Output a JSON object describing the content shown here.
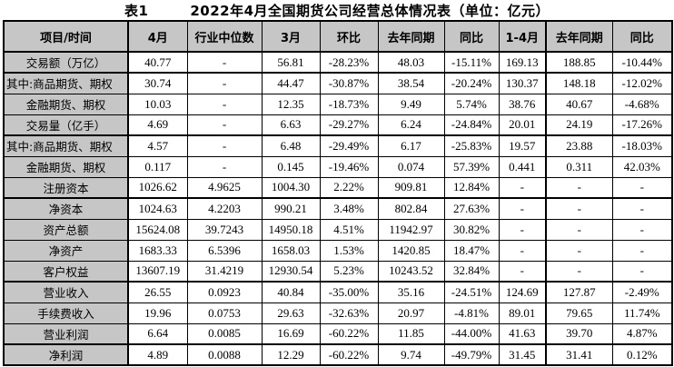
{
  "title": {
    "prefix": "表1",
    "text": "2022年4月全国期货公司经营总体情况表（单位：亿元）"
  },
  "colors": {
    "header_bg": "#c6c6c6",
    "border": "#000000",
    "text": "#000000"
  },
  "table": {
    "columns": [
      "项目/时间",
      "4月",
      "行业中位数",
      "3月",
      "环比",
      "去年同期",
      "同比",
      "1-4月",
      "去年同期",
      "同比"
    ],
    "rows": [
      {
        "label": "交易额（万亿）",
        "cells": [
          "40.77",
          "-",
          "56.81",
          "-28.23%",
          "48.03",
          "-15.11%",
          "169.13",
          "188.85",
          "-10.44%"
        ],
        "section_end": true
      },
      {
        "label": "其中:商品期货、期权",
        "cells": [
          "30.74",
          "-",
          "44.47",
          "-30.87%",
          "38.54",
          "-20.24%",
          "130.37",
          "148.18",
          "-12.02%"
        ],
        "section_end": false
      },
      {
        "label": "金融期货、期权",
        "cells": [
          "10.03",
          "-",
          "12.35",
          "-18.73%",
          "9.49",
          "5.74%",
          "38.76",
          "40.67",
          "-4.68%"
        ],
        "section_end": false
      },
      {
        "label": "交易量（亿手）",
        "cells": [
          "4.69",
          "-",
          "6.63",
          "-29.27%",
          "6.24",
          "-24.84%",
          "20.01",
          "24.19",
          "-17.26%"
        ],
        "section_end": true
      },
      {
        "label": "其中:商品期货、期权",
        "cells": [
          "4.57",
          "-",
          "6.48",
          "-29.49%",
          "6.17",
          "-25.83%",
          "19.57",
          "23.88",
          "-18.03%"
        ],
        "section_end": false
      },
      {
        "label": "金融期货、期权",
        "cells": [
          "0.117",
          "-",
          "0.145",
          "-19.46%",
          "0.074",
          "57.39%",
          "0.441",
          "0.311",
          "42.03%"
        ],
        "section_end": false
      },
      {
        "label": "注册资本",
        "cells": [
          "1026.62",
          "4.9625",
          "1004.30",
          "2.22%",
          "909.81",
          "12.84%",
          "-",
          "-",
          "-"
        ],
        "section_end": true
      },
      {
        "label": "净资本",
        "cells": [
          "1024.63",
          "4.2203",
          "990.21",
          "3.48%",
          "802.84",
          "27.63%",
          "-",
          "-",
          "-"
        ],
        "section_end": false
      },
      {
        "label": "资产总额",
        "cells": [
          "15624.08",
          "39.7243",
          "14950.18",
          "4.51%",
          "11942.97",
          "30.82%",
          "-",
          "-",
          "-"
        ],
        "section_end": false
      },
      {
        "label": "净资产",
        "cells": [
          "1683.33",
          "6.5396",
          "1658.03",
          "1.53%",
          "1420.85",
          "18.47%",
          "-",
          "-",
          "-"
        ],
        "section_end": false
      },
      {
        "label": "客户权益",
        "cells": [
          "13607.19",
          "31.4219",
          "12930.54",
          "5.23%",
          "10243.52",
          "32.84%",
          "-",
          "-",
          "-"
        ],
        "section_end": true
      },
      {
        "label": "营业收入",
        "cells": [
          "26.55",
          "0.0923",
          "40.84",
          "-35.00%",
          "35.16",
          "-24.51%",
          "124.69",
          "127.87",
          "-2.49%"
        ],
        "section_end": false
      },
      {
        "label": "手续费收入",
        "cells": [
          "19.96",
          "0.0753",
          "29.63",
          "-32.63%",
          "20.97",
          "-4.81%",
          "89.01",
          "79.65",
          "11.74%"
        ],
        "section_end": false
      },
      {
        "label": "营业利润",
        "cells": [
          "6.64",
          "0.0085",
          "16.69",
          "-60.22%",
          "11.85",
          "-44.00%",
          "41.63",
          "39.70",
          "4.87%"
        ],
        "section_end": true
      },
      {
        "label": "净利润",
        "cells": [
          "4.89",
          "0.0088",
          "12.29",
          "-60.22%",
          "9.74",
          "-49.79%",
          "31.45",
          "31.41",
          "0.12%"
        ],
        "section_end": false
      }
    ]
  }
}
